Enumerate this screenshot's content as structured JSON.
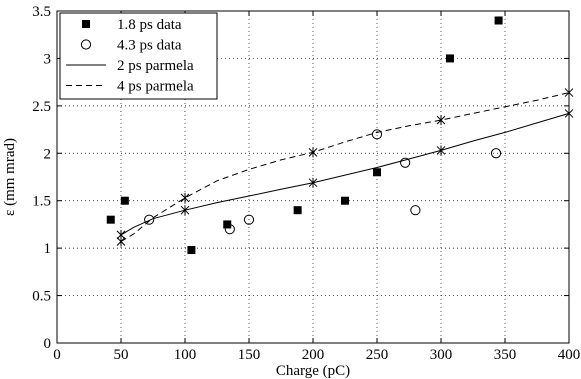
{
  "chart_data": {
    "type": "scatter",
    "title": "",
    "xlabel": "Charge (pC)",
    "ylabel": "ε (mm mrad)",
    "xlim": [
      0,
      400
    ],
    "ylim": [
      0,
      3.5
    ],
    "xticks": [
      0,
      50,
      100,
      150,
      200,
      250,
      300,
      350,
      400
    ],
    "yticks": [
      0,
      0.5,
      1,
      1.5,
      2,
      2.5,
      3,
      3.5
    ],
    "xtick_labels": [
      "0",
      "50",
      "100",
      "150",
      "200",
      "250",
      "300",
      "350",
      "400"
    ],
    "ytick_labels": [
      "0",
      "0.5",
      "1",
      "1.5",
      "2",
      "2.5",
      "3",
      "3.5"
    ],
    "grid": true,
    "grid_style": "dotted",
    "legend_position": "top-left",
    "series": [
      {
        "name": "1.8 ps data",
        "kind": "scatter",
        "marker": "filled-square",
        "color": "#000000",
        "points": [
          [
            42,
            1.3
          ],
          [
            53,
            1.5
          ],
          [
            105,
            0.98
          ],
          [
            133,
            1.25
          ],
          [
            188,
            1.4
          ],
          [
            225,
            1.5
          ],
          [
            250,
            1.8
          ],
          [
            307,
            3.0
          ],
          [
            345,
            3.4
          ]
        ]
      },
      {
        "name": "4.3 ps data",
        "kind": "scatter",
        "marker": "open-circle",
        "color": "#000000",
        "points": [
          [
            72,
            1.3
          ],
          [
            135,
            1.2
          ],
          [
            150,
            1.3
          ],
          [
            250,
            2.2
          ],
          [
            272,
            1.9
          ],
          [
            280,
            1.4
          ],
          [
            343,
            2.0
          ]
        ]
      },
      {
        "name": "2 ps parmela",
        "kind": "line",
        "line_style": "solid",
        "marker": "x",
        "color": "#000000",
        "points": [
          [
            50,
            1.14
          ],
          [
            60,
            1.22
          ],
          [
            75,
            1.31
          ],
          [
            100,
            1.4
          ],
          [
            125,
            1.48
          ],
          [
            150,
            1.55
          ],
          [
            175,
            1.62
          ],
          [
            200,
            1.69
          ],
          [
            225,
            1.77
          ],
          [
            250,
            1.85
          ],
          [
            275,
            1.94
          ],
          [
            300,
            2.03
          ],
          [
            325,
            2.13
          ],
          [
            350,
            2.22
          ],
          [
            375,
            2.32
          ],
          [
            400,
            2.42
          ]
        ],
        "marker_points": [
          [
            50,
            1.14
          ],
          [
            100,
            1.4
          ],
          [
            200,
            1.69
          ],
          [
            300,
            2.03
          ],
          [
            400,
            2.42
          ]
        ]
      },
      {
        "name": "4 ps parmela",
        "kind": "line",
        "line_style": "dashed",
        "marker": "x",
        "color": "#000000",
        "points": [
          [
            50,
            1.07
          ],
          [
            60,
            1.15
          ],
          [
            75,
            1.32
          ],
          [
            100,
            1.53
          ],
          [
            125,
            1.71
          ],
          [
            150,
            1.83
          ],
          [
            175,
            1.93
          ],
          [
            200,
            2.01
          ],
          [
            225,
            2.12
          ],
          [
            250,
            2.22
          ],
          [
            275,
            2.29
          ],
          [
            300,
            2.35
          ],
          [
            325,
            2.42
          ],
          [
            350,
            2.49
          ],
          [
            375,
            2.56
          ],
          [
            400,
            2.64
          ]
        ],
        "marker_points": [
          [
            50,
            1.07
          ],
          [
            100,
            1.53
          ],
          [
            200,
            2.01
          ],
          [
            300,
            2.35
          ],
          [
            400,
            2.64
          ]
        ]
      }
    ]
  }
}
